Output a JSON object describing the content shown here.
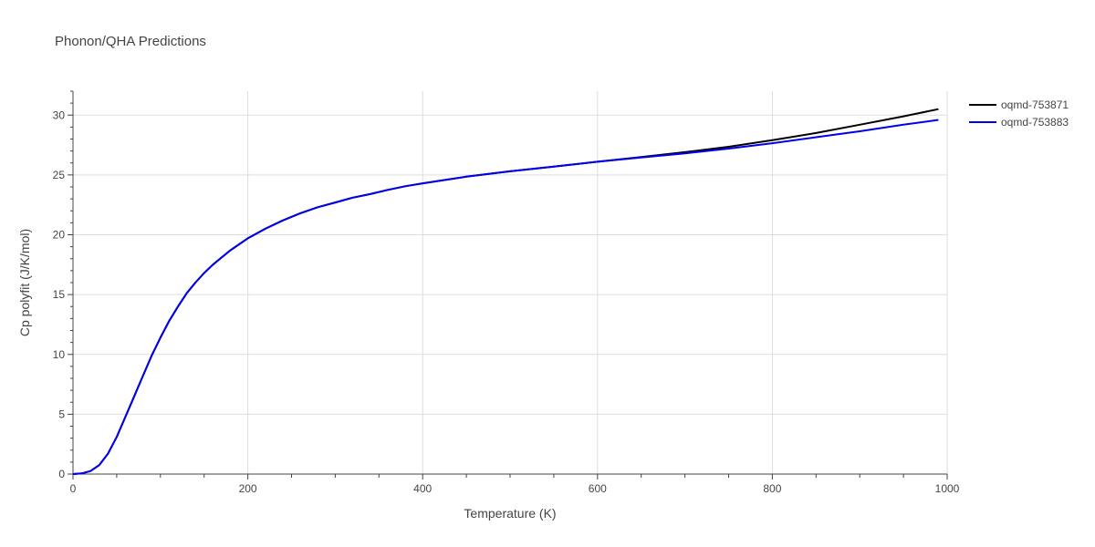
{
  "chart_data": {
    "type": "line",
    "title": "Phonon/QHA Predictions",
    "xlabel": "Temperature (K)",
    "ylabel": "Cp polyfit (J/K/mol)",
    "xlim": [
      0,
      1000
    ],
    "ylim": [
      0,
      32
    ],
    "xticks": [
      0,
      200,
      400,
      600,
      800,
      1000
    ],
    "yticks": [
      0,
      5,
      10,
      15,
      20,
      25,
      30
    ],
    "grid": true,
    "legend_position": "top-right",
    "series": [
      {
        "name": "oqmd-753871",
        "color": "#000000",
        "x": [
          0,
          10,
          20,
          30,
          40,
          50,
          60,
          70,
          80,
          90,
          100,
          110,
          120,
          130,
          140,
          150,
          160,
          170,
          180,
          190,
          200,
          220,
          240,
          260,
          280,
          300,
          320,
          340,
          360,
          380,
          400,
          450,
          500,
          550,
          600,
          650,
          700,
          750,
          800,
          850,
          900,
          950,
          990
        ],
        "y": [
          0,
          0.05,
          0.25,
          0.75,
          1.7,
          3.1,
          4.8,
          6.5,
          8.2,
          9.9,
          11.4,
          12.8,
          14.0,
          15.1,
          16.0,
          16.8,
          17.5,
          18.1,
          18.7,
          19.2,
          19.7,
          20.5,
          21.2,
          21.8,
          22.3,
          22.7,
          23.1,
          23.4,
          23.75,
          24.05,
          24.3,
          24.85,
          25.3,
          25.7,
          26.1,
          26.5,
          26.9,
          27.35,
          27.9,
          28.5,
          29.2,
          29.9,
          30.5
        ]
      },
      {
        "name": "oqmd-753883",
        "color": "#0000ee",
        "x": [
          0,
          10,
          20,
          30,
          40,
          50,
          60,
          70,
          80,
          90,
          100,
          110,
          120,
          130,
          140,
          150,
          160,
          170,
          180,
          190,
          200,
          220,
          240,
          260,
          280,
          300,
          320,
          340,
          360,
          380,
          400,
          450,
          500,
          550,
          600,
          650,
          700,
          750,
          800,
          850,
          900,
          950,
          990
        ],
        "y": [
          0,
          0.05,
          0.25,
          0.75,
          1.7,
          3.1,
          4.8,
          6.5,
          8.2,
          9.9,
          11.4,
          12.8,
          14.0,
          15.1,
          16.0,
          16.8,
          17.5,
          18.1,
          18.7,
          19.2,
          19.7,
          20.5,
          21.2,
          21.8,
          22.3,
          22.7,
          23.1,
          23.4,
          23.75,
          24.05,
          24.3,
          24.85,
          25.3,
          25.7,
          26.1,
          26.45,
          26.8,
          27.2,
          27.65,
          28.15,
          28.65,
          29.2,
          29.6
        ]
      }
    ]
  }
}
